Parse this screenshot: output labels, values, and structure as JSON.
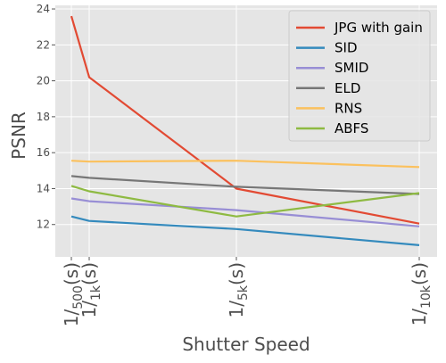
{
  "chart_data": {
    "type": "line",
    "title": "",
    "xlabel": "Shutter Speed",
    "ylabel": "PSNR",
    "x": [
      500,
      1000,
      5000,
      10000
    ],
    "x_tick_labels": [
      {
        "num": "1/",
        "sub": "500",
        "unit": "(s)"
      },
      {
        "num": "1/",
        "sub": "1k",
        "unit": "(s)"
      },
      {
        "num": "1/",
        "sub": "5k",
        "unit": "(s)"
      },
      {
        "num": "1/",
        "sub": "10k",
        "unit": "(s)"
      }
    ],
    "y_ticks": [
      12,
      14,
      16,
      18,
      20,
      22,
      24
    ],
    "ylim": [
      10.2,
      24.2
    ],
    "grid": true,
    "legend_position": "top-right",
    "series": [
      {
        "name": "JPG with gain",
        "color": "#E24A33",
        "values": [
          23.6,
          20.2,
          14.0,
          12.05
        ]
      },
      {
        "name": "SID",
        "color": "#348ABD",
        "values": [
          12.45,
          12.2,
          11.75,
          10.85
        ]
      },
      {
        "name": "SMID",
        "color": "#988ED5",
        "values": [
          13.45,
          13.3,
          12.8,
          11.9
        ]
      },
      {
        "name": "ELD",
        "color": "#777777",
        "values": [
          14.7,
          14.6,
          14.1,
          13.7
        ]
      },
      {
        "name": "RNS",
        "color": "#FBC15E",
        "values": [
          15.55,
          15.5,
          15.55,
          15.2
        ]
      },
      {
        "name": "ABFS",
        "color": "#8EBA42",
        "values": [
          14.15,
          13.85,
          12.45,
          13.75
        ]
      }
    ]
  }
}
